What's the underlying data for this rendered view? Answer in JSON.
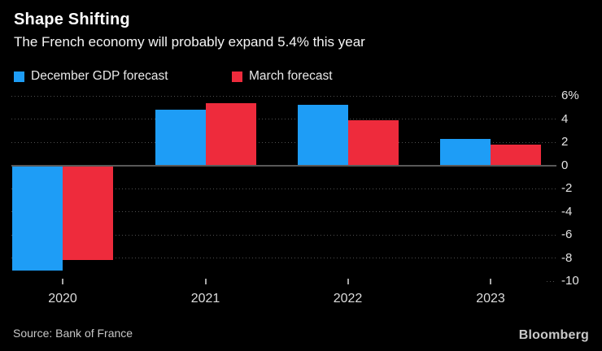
{
  "header": {
    "title": "Shape Shifting",
    "subtitle": "The French economy will probably expand 5.4% this year"
  },
  "chart_data": {
    "type": "bar",
    "title": "Shape Shifting",
    "subtitle": "The French economy will probably expand 5.4% this year",
    "categories": [
      "2020",
      "2021",
      "2022",
      "2023"
    ],
    "series": [
      {
        "name": "December GDP forecast",
        "color": "#1e9df6",
        "values": [
          -9.1,
          4.8,
          5.2,
          2.3
        ]
      },
      {
        "name": "March forecast",
        "color": "#ee2b3c",
        "values": [
          -8.2,
          5.4,
          3.9,
          1.8
        ]
      }
    ],
    "unit": "%",
    "ylim": [
      -10,
      6
    ],
    "yticks": [
      6,
      4,
      2,
      0,
      -2,
      -4,
      -6,
      -8,
      -10
    ],
    "ytick_labels": [
      "6%",
      "4",
      "2",
      "0",
      "-2",
      "-4",
      "-6",
      "-8",
      "-10"
    ],
    "grid": "horizontal-dotted",
    "legend_position": "top-left",
    "axis_labels_side": "right"
  },
  "footer": {
    "source": "Source: Bank of France",
    "brand": "Bloomberg"
  },
  "colors": {
    "background": "#000000",
    "grid": "#4f4f4f",
    "zero_line": "#585858",
    "text_primary": "#ffffff",
    "text_secondary": "#e4e4e4"
  }
}
